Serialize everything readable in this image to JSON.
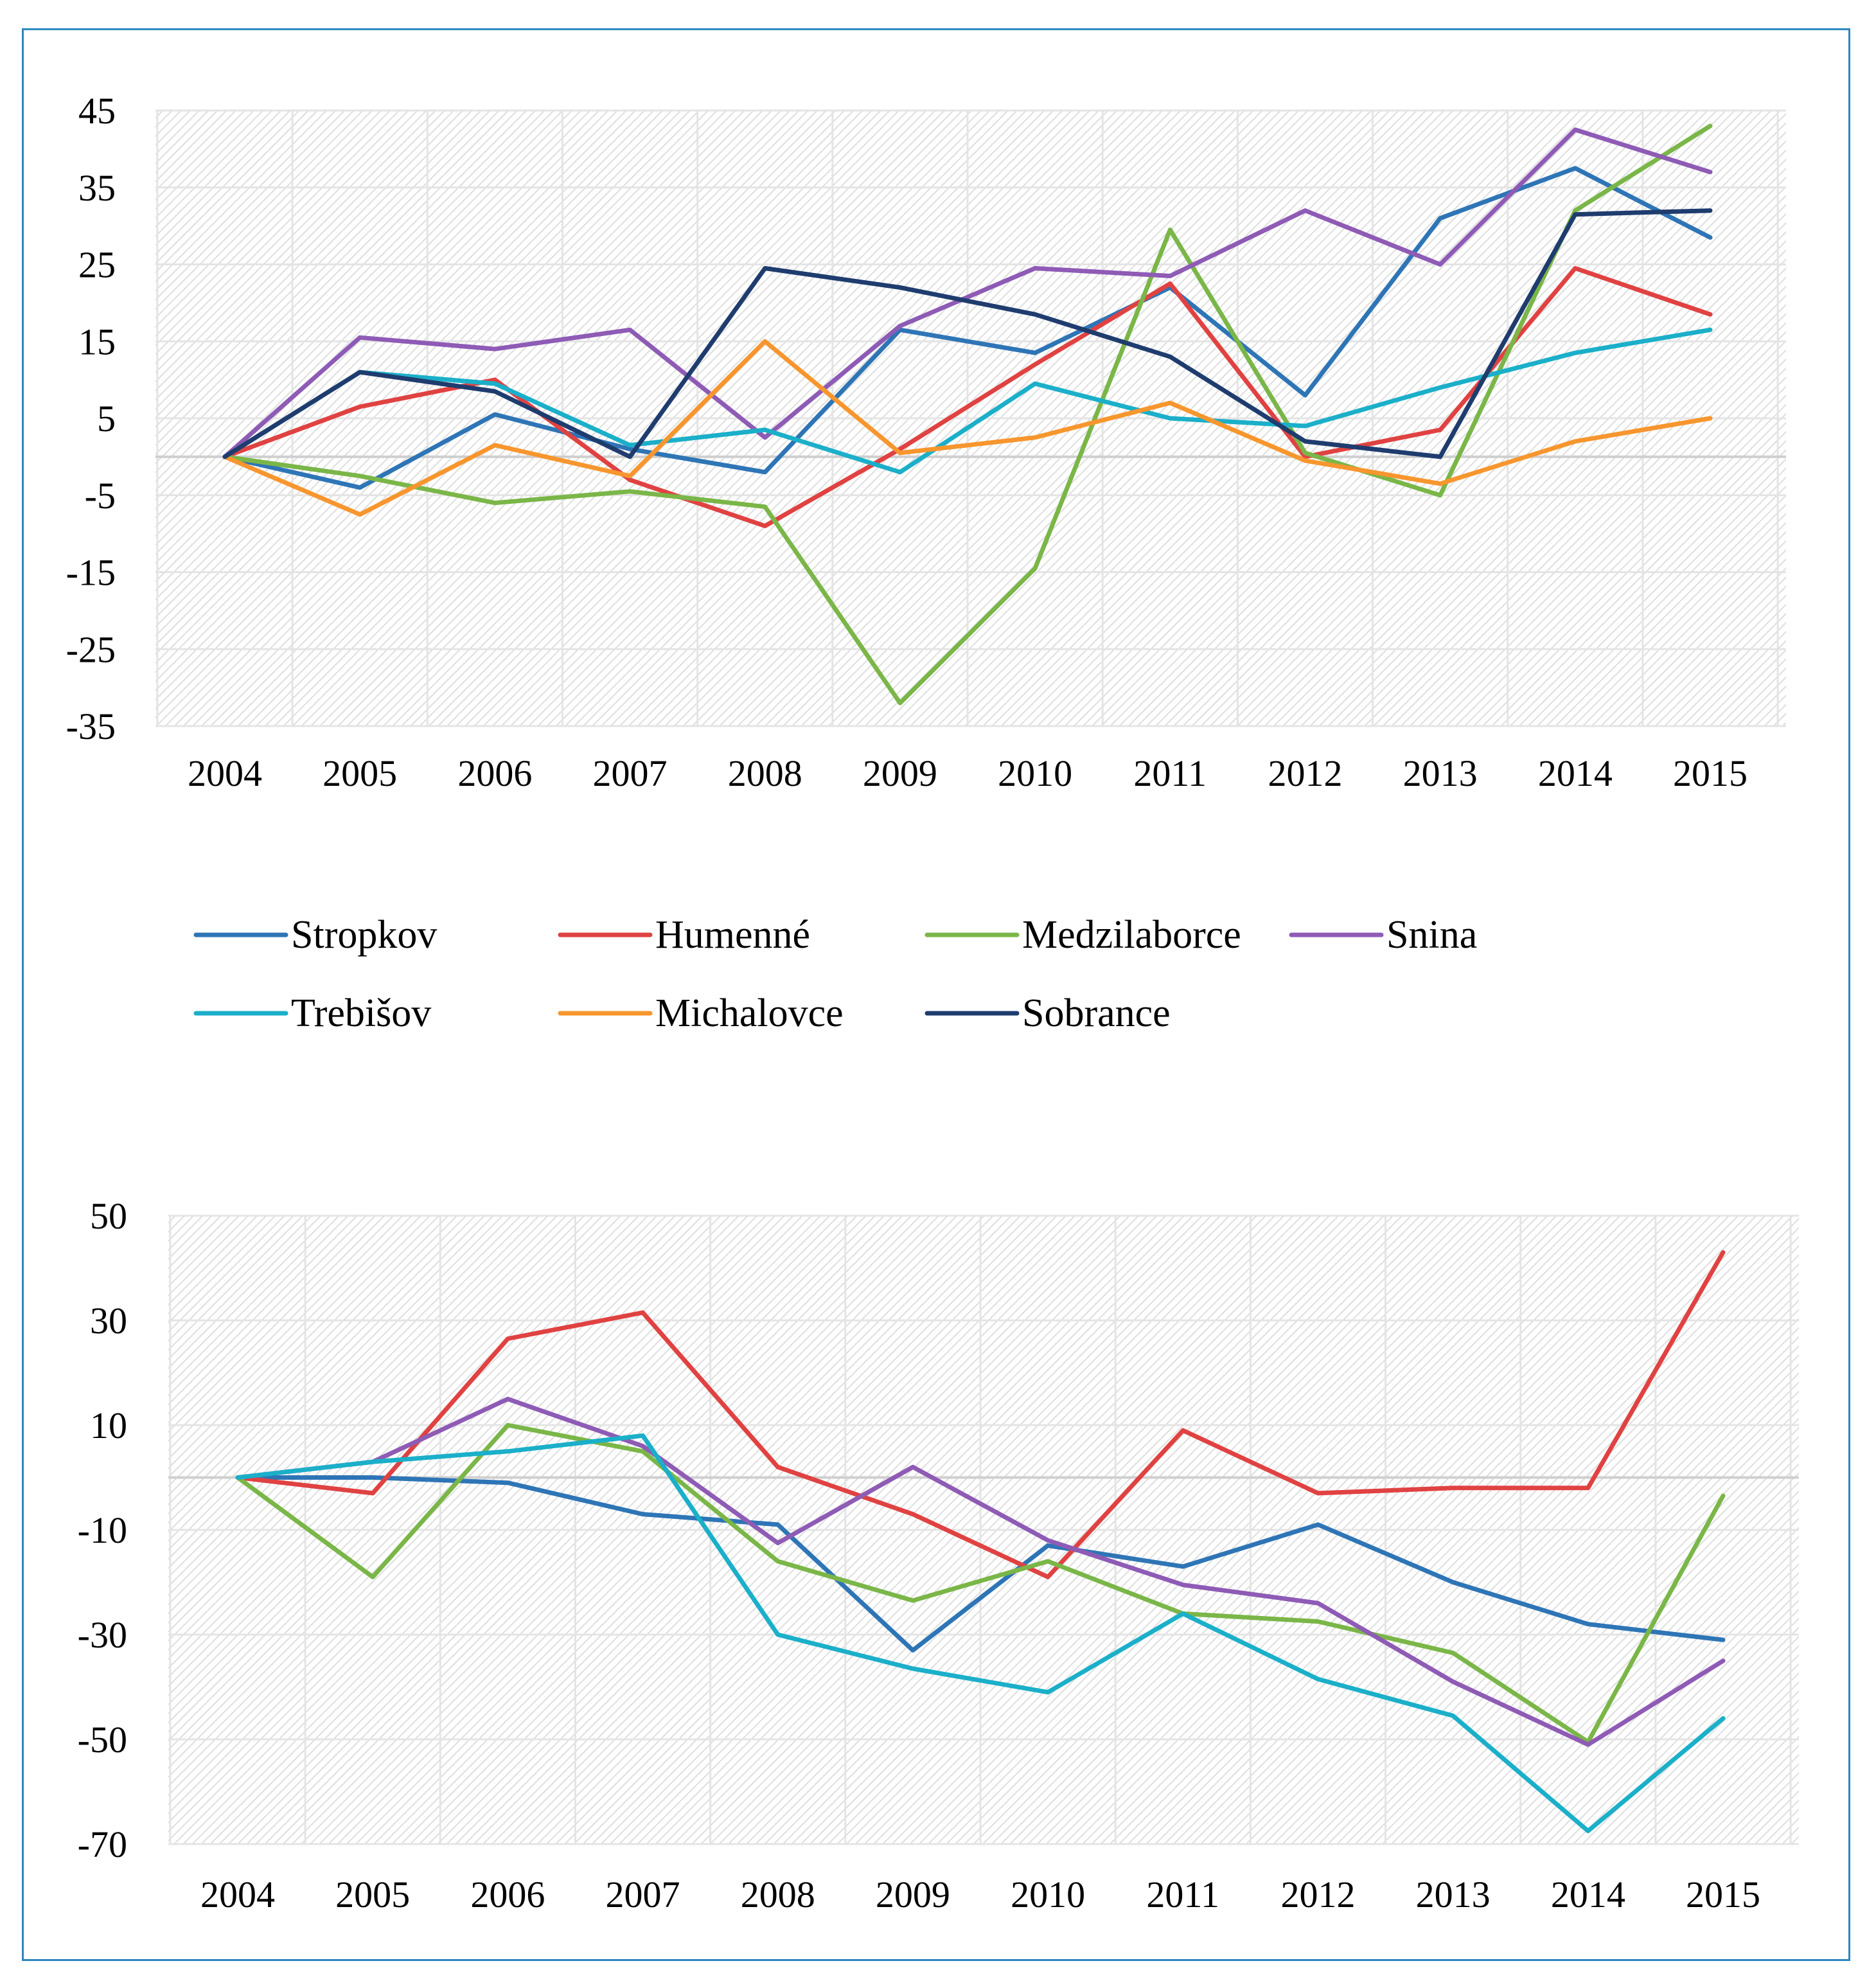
{
  "chart_data": [
    {
      "type": "line",
      "title": "",
      "xlabel": "",
      "ylabel": "",
      "categories": [
        "2004",
        "2005",
        "2006",
        "2007",
        "2008",
        "2009",
        "2010",
        "2011",
        "2012",
        "2013",
        "2014",
        "2015"
      ],
      "ylim": [
        -35,
        45
      ],
      "yticks": [
        45,
        35,
        25,
        15,
        5,
        -5,
        -15,
        -25,
        -35
      ],
      "grid": true,
      "legend": "bottom",
      "series": [
        {
          "name": "Stropkov",
          "color": "#2E75B6",
          "values": [
            0,
            -4,
            5.5,
            1,
            -2,
            16.5,
            13.5,
            22,
            8,
            31,
            37.5,
            28.5
          ]
        },
        {
          "name": "Humenné",
          "color": "#E04242",
          "values": [
            0,
            6.5,
            10,
            -3,
            -9,
            1,
            12,
            22.5,
            0,
            3.5,
            24.5,
            18.5
          ]
        },
        {
          "name": "Medzilaborce",
          "color": "#7AB648",
          "values": [
            0,
            -2.5,
            -6,
            -4.5,
            -6.5,
            -32,
            -14.5,
            29.5,
            0.5,
            -5,
            32,
            43
          ]
        },
        {
          "name": "Snina",
          "color": "#8E5BB5",
          "values": [
            0,
            15.5,
            14,
            16.5,
            2.5,
            17,
            24.5,
            23.5,
            32,
            25,
            42.5,
            37
          ]
        },
        {
          "name": "Trebišov",
          "color": "#1BAFC9",
          "values": [
            0,
            11,
            9.5,
            1.5,
            3.5,
            -2,
            9.5,
            5,
            4,
            9,
            13.5,
            16.5
          ]
        },
        {
          "name": "Michalovce",
          "color": "#F7962E",
          "values": [
            0,
            -7.5,
            1.5,
            -2.5,
            15,
            0.5,
            2.5,
            7,
            -0.5,
            -3.5,
            2,
            5
          ]
        },
        {
          "name": "Sobrance",
          "color": "#1F3C6E",
          "values": [
            0,
            11,
            8.5,
            0,
            24.5,
            22,
            18.5,
            13,
            2,
            0,
            31.5,
            32
          ]
        }
      ]
    },
    {
      "type": "line",
      "title": "",
      "xlabel": "",
      "ylabel": "",
      "categories": [
        "2004",
        "2005",
        "2006",
        "2007",
        "2008",
        "2009",
        "2010",
        "2011",
        "2012",
        "2013",
        "2014",
        "2015"
      ],
      "ylim": [
        -70,
        50
      ],
      "yticks": [
        50,
        30,
        10,
        -10,
        -30,
        -50,
        -70
      ],
      "grid": true,
      "series": [
        {
          "name": "Stropkov",
          "color": "#2E75B6",
          "values": [
            0,
            0,
            -1,
            -7,
            -9,
            -33,
            -13,
            -17,
            -9,
            -20,
            -28,
            -31
          ]
        },
        {
          "name": "Humenné",
          "color": "#E04242",
          "values": [
            0,
            -3,
            26.5,
            31.5,
            2,
            -7,
            -19,
            9,
            -3,
            -2,
            -2,
            43
          ]
        },
        {
          "name": "Medzilaborce",
          "color": "#7AB648",
          "values": [
            0,
            -19,
            10,
            5,
            -16,
            -23.5,
            -16,
            -26,
            -27.5,
            -33.5,
            -50.5,
            -3.5
          ]
        },
        {
          "name": "Snina",
          "color": "#8E5BB5",
          "values": [
            0,
            3,
            15,
            6,
            -12.5,
            2,
            -12,
            -20.5,
            -24,
            -39,
            -51,
            -35
          ]
        },
        {
          "name": "Trebišov",
          "color": "#1BAFC9",
          "values": [
            0,
            3,
            5,
            8,
            -30,
            -36.5,
            -41,
            -26,
            -38.5,
            -45.5,
            -67.5,
            -46
          ]
        }
      ]
    }
  ]
}
